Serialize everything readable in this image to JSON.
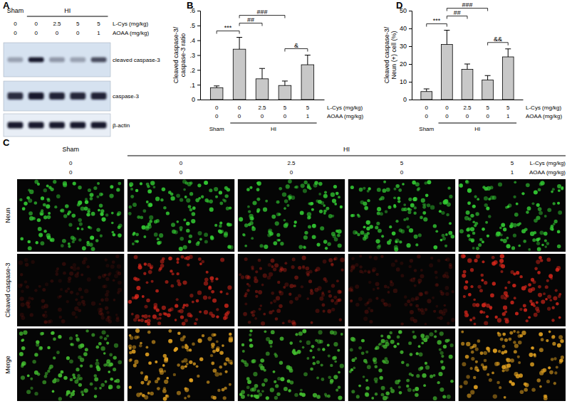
{
  "panel_a": {
    "label": "A",
    "groups": [
      {
        "label": "Sham",
        "lanes": [
          0
        ]
      },
      {
        "label": "HI",
        "lanes": [
          1,
          2,
          3,
          4
        ]
      }
    ],
    "treatments": [
      {
        "name": "L-Cys (mg/kg)",
        "values": [
          0,
          0,
          2.5,
          5,
          5
        ]
      },
      {
        "name": "AOAA (mg/kg)",
        "values": [
          0,
          0,
          0,
          0,
          1
        ]
      }
    ],
    "bands": [
      "cleaved caspase-3",
      "caspase-3",
      "β-actin"
    ]
  },
  "chart_data": [
    {
      "type": "bar",
      "title": "B",
      "y_label": "Cleaved caspase-3/ caspase-3 ratio",
      "categories": [
        null,
        null,
        null,
        null,
        null
      ],
      "values": [
        0.08,
        0.34,
        0.14,
        0.095,
        0.235
      ],
      "errors": [
        0.012,
        0.08,
        0.07,
        0.03,
        0.065
      ],
      "color": "#c8c8c8",
      "ylim": [
        0,
        0.6
      ],
      "yticks": [
        0,
        {
          "value": 0.1,
          "label": ".1"
        },
        {
          "value": 0.2,
          "label": ".2"
        },
        {
          "value": 0.3,
          "label": ".3"
        },
        {
          "value": 0.4,
          "label": ".4"
        },
        {
          "value": 0.5,
          "label": ".5"
        },
        {
          "value": 0.6,
          "label": ".6"
        }
      ],
      "treatments": [
        {
          "name": "L-Cys (mg/kg)",
          "values": [
            0,
            0,
            2.5,
            5,
            5
          ]
        },
        {
          "name": "AOAA (mg/kg)",
          "values": [
            0,
            0,
            0,
            0,
            1
          ]
        }
      ],
      "groups": [
        {
          "label": "Sham",
          "lanes": [
            0
          ]
        },
        {
          "label": "HI",
          "lanes": [
            1,
            2,
            3,
            4
          ]
        }
      ],
      "annotations": [
        {
          "text": "***",
          "from": 0,
          "to": 1
        },
        {
          "text": "##",
          "from": 1,
          "to": 2
        },
        {
          "text": "###",
          "from": 1,
          "to": 3
        },
        {
          "text": "&",
          "from": 3,
          "to": 4
        }
      ]
    },
    {
      "type": "bar",
      "title": "D",
      "y_label": "Cleaved caspase-3/ Neun (+) cell (%)",
      "categories": [
        null,
        null,
        null,
        null,
        null
      ],
      "values": [
        4.5,
        31,
        17,
        11,
        24
      ],
      "errors": [
        1.5,
        8,
        3,
        2.5,
        4.5
      ],
      "color": "#c8c8c8",
      "ylim": [
        0,
        50
      ],
      "yticks": [
        0,
        10,
        20,
        30,
        40,
        50
      ],
      "treatments": [
        {
          "name": "L-Cys (mg/kg)",
          "values": [
            0,
            0,
            2.5,
            5,
            5
          ]
        },
        {
          "name": "AOAA (mg/kg)",
          "values": [
            0,
            0,
            0,
            0,
            1
          ]
        }
      ],
      "groups": [
        {
          "label": "Sham",
          "lanes": [
            0
          ]
        },
        {
          "label": "HI",
          "lanes": [
            1,
            2,
            3,
            4
          ]
        }
      ],
      "annotations": [
        {
          "text": "***",
          "from": 0,
          "to": 1
        },
        {
          "text": "##",
          "from": 1,
          "to": 2
        },
        {
          "text": "###",
          "from": 1,
          "to": 3
        },
        {
          "text": "&&",
          "from": 3,
          "to": 4
        }
      ]
    }
  ],
  "panel_c": {
    "label": "C",
    "groups": [
      {
        "label": "Sham",
        "lanes": [
          0
        ]
      },
      {
        "label": "HI",
        "lanes": [
          1,
          2,
          3,
          4
        ]
      }
    ],
    "treatments": [
      {
        "name": "L-Cys (mg/kg)",
        "values": [
          0,
          0,
          2.5,
          5,
          5
        ]
      },
      {
        "name": "AOAA (mg/kg)",
        "values": [
          0,
          0,
          0,
          0,
          1
        ]
      }
    ],
    "channels": [
      "Neun",
      "Cleaved caspase-3",
      "Merge"
    ]
  }
}
